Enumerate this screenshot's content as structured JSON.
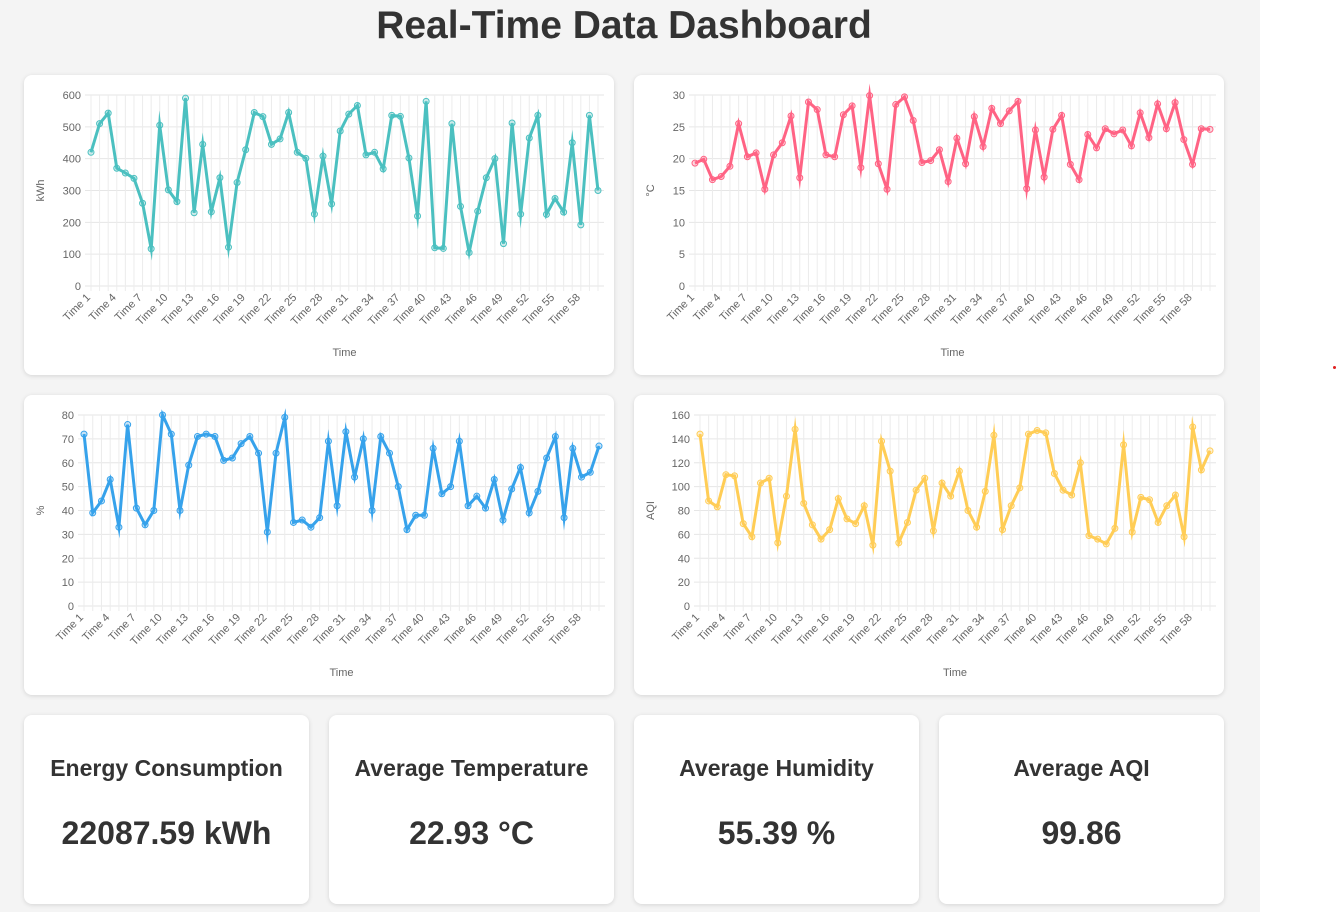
{
  "page": {
    "title": "Real-Time Data Dashboard"
  },
  "chart_data": [
    {
      "type": "line",
      "xlabel": "Time",
      "ylabel": "kWh",
      "ylim": [
        0,
        600
      ],
      "yticks": [
        0,
        100,
        200,
        300,
        400,
        500,
        600
      ],
      "color": "#4bc0c0",
      "grid": true,
      "values": [
        420,
        510,
        543,
        370,
        355,
        338,
        260,
        117,
        505,
        302,
        265,
        590,
        230,
        445,
        233,
        340,
        122,
        325,
        428,
        545,
        532,
        445,
        462,
        545,
        420,
        401,
        226,
        408,
        258,
        487,
        540,
        567,
        412,
        420,
        368,
        536,
        533,
        402,
        220,
        580,
        120,
        118,
        510,
        250,
        105,
        235,
        340,
        400,
        133,
        512,
        226,
        465,
        536,
        225,
        275,
        232,
        450,
        192,
        536,
        300
      ]
    },
    {
      "type": "line",
      "xlabel": "Time",
      "ylabel": "°C",
      "ylim": [
        0,
        30
      ],
      "yticks": [
        0,
        5,
        10,
        15,
        20,
        25,
        30
      ],
      "color": "#ff6384",
      "grid": true,
      "values": [
        19.3,
        19.9,
        16.7,
        17.2,
        18.8,
        25.5,
        20.3,
        20.9,
        15.2,
        20.6,
        22.5,
        26.7,
        17.0,
        28.9,
        27.7,
        20.6,
        20.3,
        26.9,
        28.3,
        18.6,
        29.9,
        19.2,
        15.2,
        28.5,
        29.7,
        26.0,
        19.4,
        19.7,
        21.4,
        16.4,
        23.2,
        19.2,
        26.6,
        21.9,
        27.9,
        25.5,
        27.5,
        29.0,
        15.3,
        24.5,
        17.1,
        24.6,
        26.8,
        19.1,
        16.7,
        23.8,
        21.7,
        24.7,
        23.9,
        24.5,
        22.0,
        27.2,
        23.3,
        28.6,
        24.7,
        28.8,
        23.0,
        19.1,
        24.7,
        24.6
      ]
    },
    {
      "type": "line",
      "xlabel": "Time",
      "ylabel": "%",
      "ylim": [
        0,
        80
      ],
      "yticks": [
        0,
        10,
        20,
        30,
        40,
        50,
        60,
        70,
        80
      ],
      "color": "#36a2eb",
      "grid": true,
      "values": [
        72,
        39,
        44,
        53,
        33,
        76,
        41,
        34,
        40,
        80,
        72,
        40,
        59,
        71,
        72,
        71,
        61,
        62,
        68,
        71,
        64,
        31,
        64,
        79,
        35,
        36,
        33,
        37,
        69,
        42,
        73,
        54,
        70,
        40,
        71,
        64,
        50,
        32,
        38,
        38,
        66,
        47,
        50,
        69,
        42,
        46,
        41,
        53,
        36,
        49,
        58,
        39,
        48,
        62,
        71,
        37,
        66,
        54,
        56,
        67
      ]
    },
    {
      "type": "line",
      "xlabel": "Time",
      "ylabel": "AQI",
      "ylim": [
        0,
        160
      ],
      "yticks": [
        0,
        20,
        40,
        60,
        80,
        100,
        120,
        140,
        160
      ],
      "color": "#ffcd56",
      "grid": true,
      "values": [
        144,
        88,
        83,
        110,
        109,
        69,
        58,
        103,
        107,
        53,
        92,
        148,
        86,
        68,
        56,
        64,
        90,
        73,
        69,
        84,
        51,
        138,
        113,
        53,
        70,
        97,
        107,
        63,
        103,
        92,
        113,
        80,
        66,
        96,
        143,
        64,
        84,
        99,
        144,
        147,
        145,
        111,
        97,
        93,
        120,
        59,
        56,
        52,
        65,
        135,
        62,
        91,
        89,
        70,
        84,
        93,
        58,
        150,
        114,
        130
      ]
    }
  ],
  "stats": [
    {
      "label": "Energy Consumption",
      "value": "22087.59 kWh"
    },
    {
      "label": "Average Temperature",
      "value": "22.93 °C"
    },
    {
      "label": "Average Humidity",
      "value": "55.39 %"
    },
    {
      "label": "Average AQI",
      "value": "99.86"
    }
  ]
}
